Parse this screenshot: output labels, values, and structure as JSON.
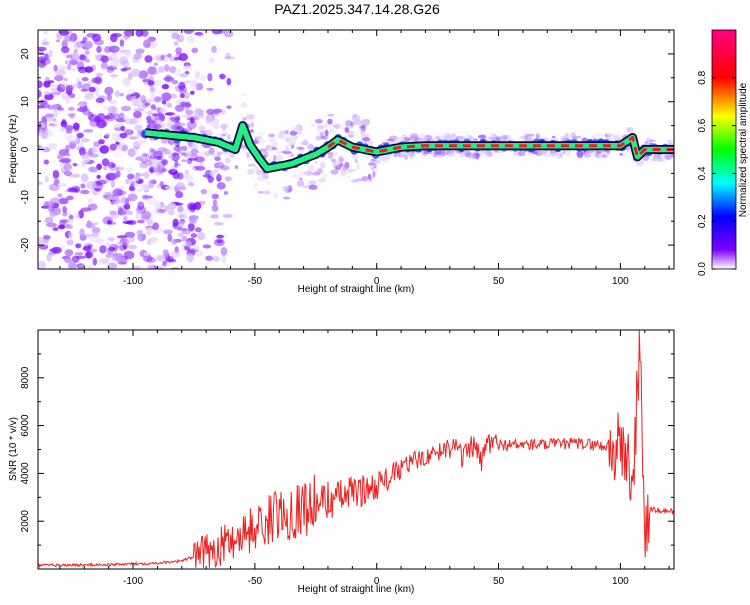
{
  "title": "PAZ1.2025.347.14.28.G26",
  "chart_data": [
    {
      "type": "heatmap",
      "xlabel": "Height of straight line (km)",
      "ylabel": "Frequency (Hz)",
      "xlim": [
        -139,
        122
      ],
      "ylim": [
        -25,
        25
      ],
      "xticks": [
        -100,
        -50,
        0,
        50,
        100
      ],
      "yticks": [
        -20,
        -10,
        0,
        10,
        20
      ],
      "colorbar": {
        "label": "Normalized spectral amplitude",
        "range": [
          0.0,
          1.0
        ],
        "ticks": [
          0.0,
          0.2,
          0.4,
          0.6,
          0.8
        ]
      },
      "track": {
        "x": [
          -95,
          -85,
          -75,
          -65,
          -58,
          -55,
          -52,
          -48,
          -45,
          -40,
          -35,
          -30,
          -25,
          -20,
          -16,
          -14,
          -10,
          -5,
          0,
          10,
          20,
          30,
          40,
          50,
          60,
          70,
          80,
          90,
          100,
          105,
          107,
          110,
          115,
          122
        ],
        "freq": [
          3.5,
          3.0,
          2.5,
          1.5,
          0.0,
          5.0,
          1.0,
          -2.0,
          -4.0,
          -3.5,
          -3.0,
          -2.0,
          -1.0,
          0.5,
          2.0,
          1.5,
          0.5,
          0.0,
          -0.5,
          0.5,
          0.8,
          0.8,
          0.8,
          0.8,
          0.8,
          0.8,
          0.8,
          0.8,
          0.8,
          2.5,
          -1.5,
          0.0,
          0.0,
          0.0
        ]
      }
    },
    {
      "type": "line",
      "xlabel": "Height of straight line (km)",
      "ylabel": "SNR (10 * v/v)",
      "xlim": [
        -139,
        122
      ],
      "ylim": [
        0,
        10000
      ],
      "xticks": [
        -100,
        -50,
        0,
        50,
        100
      ],
      "yticks": [
        2000,
        4000,
        6000,
        8000
      ],
      "series": [
        {
          "name": "SNR",
          "color": "#ee2222",
          "x": [
            -139,
            -110,
            -90,
            -80,
            -75,
            -70,
            -65,
            -60,
            -55,
            -50,
            -45,
            -40,
            -35,
            -30,
            -25,
            -20,
            -15,
            -10,
            -5,
            0,
            5,
            10,
            15,
            20,
            25,
            30,
            32,
            35,
            40,
            43,
            45,
            50,
            60,
            70,
            80,
            90,
            95,
            100,
            103,
            105,
            107,
            108,
            110,
            112,
            115,
            122
          ],
          "values": [
            150,
            180,
            250,
            350,
            500,
            700,
            900,
            1200,
            1500,
            1700,
            2000,
            2300,
            2400,
            2600,
            2700,
            2900,
            3000,
            3200,
            3300,
            3500,
            3800,
            4200,
            4500,
            4700,
            4900,
            5100,
            5500,
            4600,
            5200,
            4400,
            5300,
            5200,
            5200,
            5200,
            5250,
            5200,
            5100,
            5000,
            4800,
            3000,
            7500,
            9500,
            1500,
            2500,
            2450,
            2400
          ]
        }
      ]
    }
  ]
}
